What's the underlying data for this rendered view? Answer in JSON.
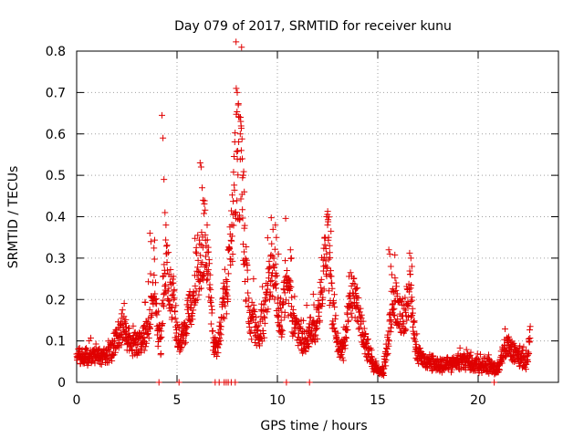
{
  "chart_data": {
    "type": "scatter",
    "title": "Day 079 of 2017, SRMTID for receiver kunu",
    "xlabel": "GPS time / hours",
    "ylabel": "SRMTID / TECUs",
    "xlim": [
      0,
      24
    ],
    "ylim": [
      0,
      0.8
    ],
    "xticks": [
      0,
      5,
      10,
      15,
      20
    ],
    "xtick_labels": [
      "0",
      "5",
      "10",
      "15",
      "20"
    ],
    "yticks": [
      0,
      0.1,
      0.2,
      0.3,
      0.4,
      0.5,
      0.6,
      0.7,
      0.8
    ],
    "ytick_labels": [
      "0",
      "0.1",
      "0.2",
      "0.3",
      "0.4",
      "0.5",
      "0.6",
      "0.7",
      "0.8"
    ],
    "grid": true,
    "marker": "+",
    "color": "#e00000",
    "envelope": {
      "description": "typical SRMTID level versus GPS hour (data points are scattered around this envelope)",
      "x": [
        0,
        0.5,
        1,
        1.5,
        2,
        2.3,
        2.7,
        3,
        3.3,
        3.5,
        3.7,
        3.8,
        3.9,
        4,
        4.2,
        4.4,
        4.6,
        4.8,
        5,
        5.2,
        5.5,
        5.8,
        6,
        6.2,
        6.4,
        6.6,
        6.8,
        7,
        7.3,
        7.6,
        7.8,
        8,
        8.2,
        8.4,
        8.6,
        8.8,
        9,
        9.3,
        9.6,
        9.8,
        10,
        10.2,
        10.4,
        10.6,
        10.8,
        11,
        11.3,
        11.6,
        12,
        12.3,
        12.5,
        12.7,
        13,
        13.3,
        13.6,
        13.9,
        14.2,
        14.5,
        14.8,
        15,
        15.3,
        15.6,
        15.8,
        16,
        16.3,
        16.6,
        16.9,
        17.2,
        17.6,
        18,
        18.5,
        19,
        19.5,
        20,
        20.5,
        21,
        21.2,
        21.5,
        21.8,
        22.1,
        22.4,
        22.6
      ],
      "y": [
        0.06,
        0.06,
        0.07,
        0.06,
        0.1,
        0.14,
        0.09,
        0.09,
        0.1,
        0.13,
        0.17,
        0.22,
        0.28,
        0.12,
        0.1,
        0.3,
        0.25,
        0.2,
        0.12,
        0.1,
        0.15,
        0.22,
        0.28,
        0.3,
        0.35,
        0.26,
        0.1,
        0.08,
        0.18,
        0.28,
        0.4,
        0.55,
        0.5,
        0.28,
        0.16,
        0.15,
        0.12,
        0.14,
        0.25,
        0.3,
        0.2,
        0.12,
        0.24,
        0.22,
        0.14,
        0.12,
        0.1,
        0.12,
        0.14,
        0.25,
        0.33,
        0.2,
        0.1,
        0.07,
        0.22,
        0.2,
        0.12,
        0.08,
        0.04,
        0.03,
        0.03,
        0.14,
        0.22,
        0.17,
        0.15,
        0.22,
        0.08,
        0.05,
        0.05,
        0.04,
        0.04,
        0.05,
        0.05,
        0.04,
        0.04,
        0.03,
        0.07,
        0.09,
        0.07,
        0.06,
        0.05,
        0.11
      ]
    },
    "spikes": {
      "x": [
        3.65,
        3.7,
        4.25,
        4.3,
        4.35,
        4.4,
        4.45,
        6.15,
        6.2,
        6.25,
        6.3,
        6.5,
        7.95,
        8.0,
        8.05,
        8.1,
        8.15,
        8.2,
        8.25,
        8.3,
        8.35,
        9.9,
        9.95,
        10.05,
        10.65,
        10.7,
        12.45,
        12.5,
        12.55,
        12.6,
        15.55,
        15.6,
        15.65,
        15.7,
        16.65,
        16.7
      ],
      "y": [
        0.36,
        0.34,
        0.645,
        0.59,
        0.49,
        0.41,
        0.38,
        0.53,
        0.52,
        0.47,
        0.44,
        0.38,
        0.71,
        0.7,
        0.67,
        0.64,
        0.6,
        0.56,
        0.54,
        0.5,
        0.46,
        0.38,
        0.35,
        0.31,
        0.32,
        0.3,
        0.4,
        0.38,
        0.35,
        0.33,
        0.32,
        0.31,
        0.28,
        0.26,
        0.3,
        0.28
      ]
    },
    "zero_points": {
      "x": [
        4.1,
        5.1,
        6.9,
        7.1,
        7.35,
        7.45,
        7.55,
        7.7,
        7.9,
        10.45,
        11.6,
        20.8
      ],
      "y": [
        0,
        0,
        0,
        0,
        0,
        0,
        0,
        0,
        0,
        0,
        0,
        0
      ]
    }
  }
}
